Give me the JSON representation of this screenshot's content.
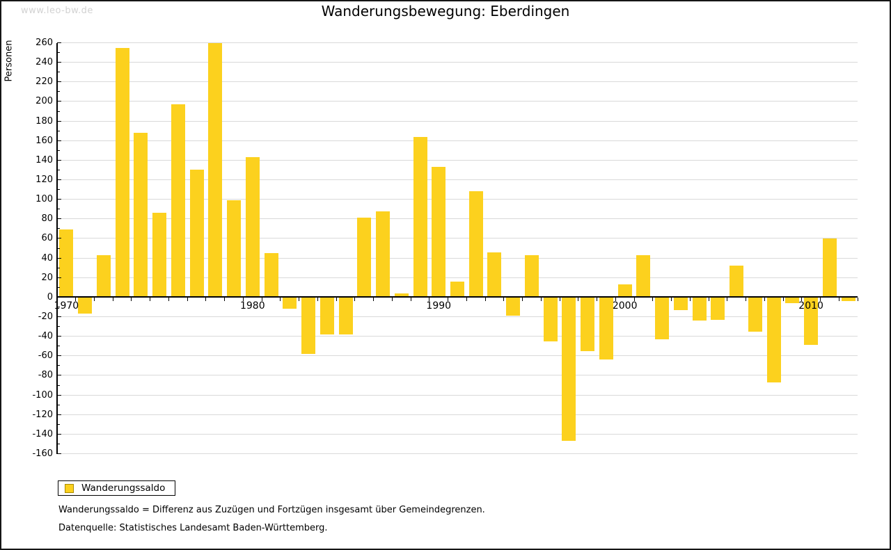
{
  "watermark": "www.leo-bw.de",
  "legend": {
    "label": "Wanderungssaldo"
  },
  "footnotes": [
    "Wanderungssaldo = Differenz aus Zuzügen und Fortzügen insgesamt über Gemeindegrenzen.",
    "Datenquelle: Statistisches Landesamt Baden-Württemberg."
  ],
  "colors": {
    "bar": "#fcd11e",
    "bar_legend_border": "#a88a00",
    "grid": "#d9d9d9",
    "axis": "#000000",
    "watermark": "#d2d2d2"
  },
  "chart_data": {
    "type": "bar",
    "title": "Wanderungsbewegung: Eberdingen",
    "xlabel": "",
    "ylabel": "Personen",
    "ylim": [
      -160,
      260
    ],
    "ytick_step": 20,
    "ytick_minor_step": 10,
    "grid": true,
    "legend_position": "bottom-left",
    "series_name": "Wanderungssaldo",
    "years": [
      1970,
      1971,
      1972,
      1973,
      1974,
      1975,
      1976,
      1977,
      1978,
      1979,
      1980,
      1981,
      1982,
      1983,
      1984,
      1985,
      1986,
      1987,
      1988,
      1989,
      1990,
      1991,
      1992,
      1993,
      1994,
      1995,
      1996,
      1997,
      1998,
      1999,
      2000,
      2001,
      2002,
      2003,
      2004,
      2005,
      2006,
      2007,
      2008,
      2009,
      2010,
      2011,
      2012
    ],
    "values": [
      69,
      -17,
      43,
      255,
      168,
      86,
      197,
      130,
      260,
      99,
      143,
      45,
      -12,
      -58,
      -38,
      -38,
      81,
      88,
      4,
      164,
      133,
      16,
      108,
      46,
      -19,
      43,
      -45,
      -147,
      -55,
      -64,
      13,
      43,
      -43,
      -13,
      -24,
      -23,
      32,
      -35,
      -87,
      -6,
      -49,
      60,
      -4
    ],
    "y_tick_labels": [
      "260",
      "240",
      "220",
      "200",
      "180",
      "160",
      "140",
      "120",
      "100",
      "80",
      "60",
      "40",
      "20",
      "0",
      "-20",
      "-40",
      "-60",
      "-80",
      "-100",
      "-120",
      "-140",
      "-160"
    ],
    "x_tick_labels": [
      "1970",
      "1980",
      "1990",
      "2000",
      "2010"
    ],
    "x_tick_years": [
      1970,
      1980,
      1990,
      2000,
      2010
    ]
  }
}
